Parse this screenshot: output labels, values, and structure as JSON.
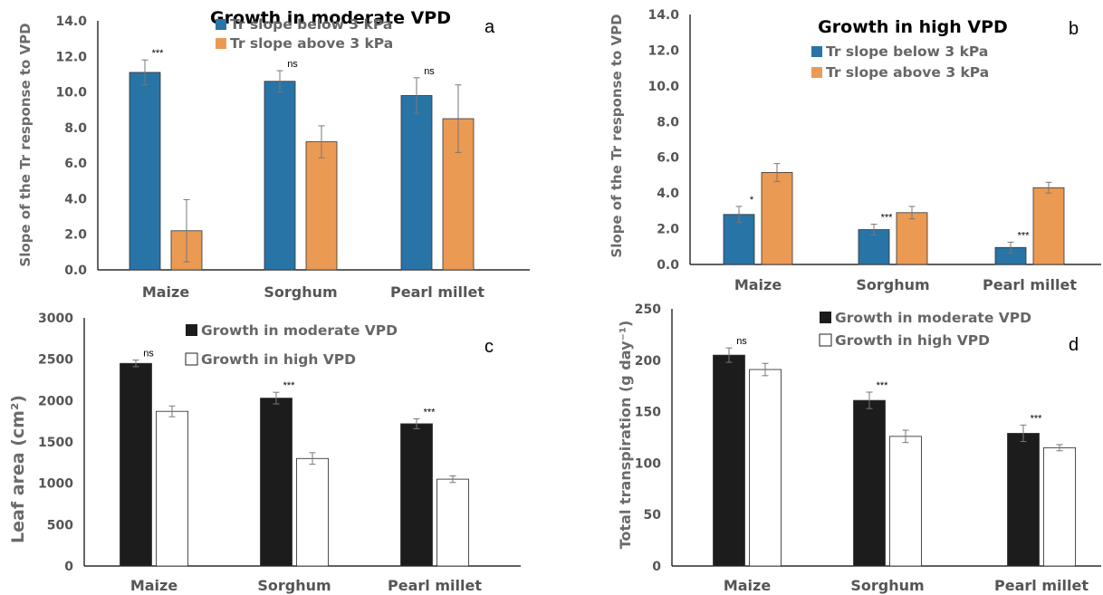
{
  "chart_data": [
    {
      "type": "bar",
      "panel": "a",
      "title": "Growth in moderate VPD",
      "ylabel": "Slope of the Tr response to VPD",
      "ylim": [
        0,
        14
      ],
      "yticks": [
        "0.0",
        "2.0",
        "4.0",
        "6.0",
        "8.0",
        "10.0",
        "12.0",
        "14.0"
      ],
      "categories": [
        "Maize",
        "Sorghum",
        "Pearl millet"
      ],
      "significance": [
        "***",
        "ns",
        "ns"
      ],
      "series": [
        {
          "name": "Tr slope below 3 kPa",
          "color": "#2874a6",
          "values": [
            11.1,
            10.6,
            9.8
          ],
          "errors": [
            0.7,
            0.6,
            1.0
          ]
        },
        {
          "name": "Tr slope above 3 kPa",
          "color": "#eb9a53",
          "values": [
            2.2,
            7.2,
            8.5
          ],
          "errors": [
            1.75,
            0.9,
            1.9
          ]
        }
      ]
    },
    {
      "type": "bar",
      "panel": "b",
      "title": "Growth in high VPD",
      "ylabel": "Slope of the Tr response to VPD",
      "ylim": [
        0,
        14
      ],
      "yticks": [
        "0.0",
        "2.0",
        "4.0",
        "6.0",
        "8.0",
        "10.0",
        "12.0",
        "14.0"
      ],
      "categories": [
        "Maize",
        "Sorghum",
        "Pearl millet"
      ],
      "significance": [
        "*",
        "***",
        "***"
      ],
      "series": [
        {
          "name": "Tr slope below 3 kPa",
          "color": "#2874a6",
          "values": [
            2.8,
            1.95,
            0.95
          ],
          "errors": [
            0.45,
            0.3,
            0.3
          ]
        },
        {
          "name": "Tr slope above 3 kPa",
          "color": "#eb9a53",
          "values": [
            5.15,
            2.9,
            4.3
          ],
          "errors": [
            0.5,
            0.35,
            0.3
          ]
        }
      ]
    },
    {
      "type": "bar",
      "panel": "c",
      "title": "",
      "ylabel": "Leaf area (cm²)",
      "ylim": [
        0,
        3000
      ],
      "yticks": [
        "0",
        "500",
        "1000",
        "1500",
        "2000",
        "2500",
        "3000"
      ],
      "categories": [
        "Maize",
        "Sorghum",
        "Pearl millet"
      ],
      "significance": [
        "ns",
        "***",
        "***"
      ],
      "series": [
        {
          "name": "Growth in moderate VPD",
          "color": "#1c1c1c",
          "values": [
            2450,
            2030,
            1720
          ],
          "errors": [
            40,
            70,
            60
          ]
        },
        {
          "name": "Growth in high VPD",
          "color": "#ffffff",
          "values": [
            1870,
            1300,
            1050
          ],
          "errors": [
            65,
            70,
            40
          ]
        }
      ]
    },
    {
      "type": "bar",
      "panel": "d",
      "title": "",
      "ylabel": "Total transpiration (g day⁻¹)",
      "ylim": [
        0,
        250
      ],
      "yticks": [
        "0",
        "50",
        "100",
        "150",
        "200",
        "250"
      ],
      "categories": [
        "Maize",
        "Sorghum",
        "Pearl millet"
      ],
      "significance": [
        "ns",
        "***",
        "***"
      ],
      "series": [
        {
          "name": "Growth in moderate VPD",
          "color": "#1c1c1c",
          "values": [
            205,
            161,
            129
          ],
          "errors": [
            7,
            8,
            8
          ]
        },
        {
          "name": "Growth in high VPD",
          "color": "#ffffff",
          "values": [
            191,
            126,
            115
          ],
          "errors": [
            6,
            6,
            3
          ]
        }
      ]
    }
  ]
}
